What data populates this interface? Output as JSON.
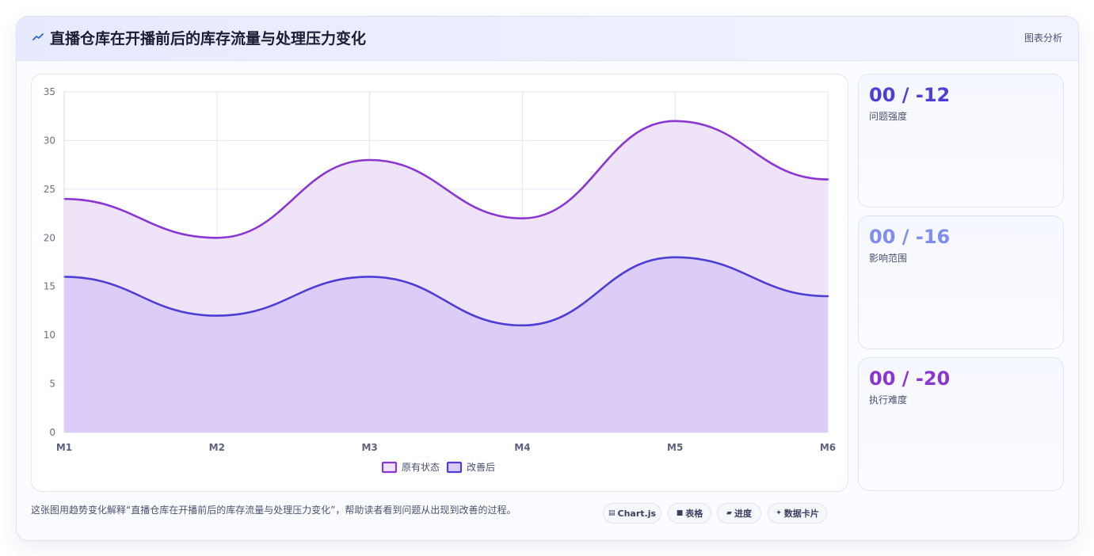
{
  "header": {
    "title": "直播仓库在开播前后的库存流量与处理压力变化",
    "tag": "图表分析",
    "icon": "trend-icon"
  },
  "metrics": [
    {
      "value": "00 / -12",
      "label": "问题强度",
      "color": "#4d3fd4"
    },
    {
      "value": "00 / -16",
      "label": "影响范围",
      "color": "#7f8cf0"
    },
    {
      "value": "00 / -20",
      "label": "执行难度",
      "color": "#8a36d1"
    }
  ],
  "footer": {
    "description": "这张图用趋势变化解释“直播仓库在开播前后的库存流量与处理压力变化”，帮助读者看到问题从出现到改善的过程。",
    "pills": [
      {
        "icon": "chart-icon",
        "label": "Chart.js"
      },
      {
        "icon": "table-icon",
        "label": "表格"
      },
      {
        "icon": "progress-icon",
        "label": "进度"
      },
      {
        "icon": "sparkle-icon",
        "label": "数据卡片"
      }
    ]
  },
  "chart_data": {
    "type": "area",
    "x": [
      "M1",
      "M2",
      "M3",
      "M4",
      "M5",
      "M6"
    ],
    "ylim": [
      0,
      35
    ],
    "yticks": [
      0,
      5,
      10,
      15,
      20,
      25,
      30,
      35
    ],
    "grid": true,
    "legend": "bottom",
    "series": [
      {
        "name": "原有状态",
        "values": [
          24,
          20,
          28,
          22,
          32,
          26
        ],
        "color": "#8a36d1",
        "fill": "#efe3f9"
      },
      {
        "name": "改善后",
        "values": [
          16,
          12,
          16,
          11,
          18,
          14
        ],
        "color": "#4d3fd4",
        "fill": "#dccdf8"
      }
    ]
  }
}
